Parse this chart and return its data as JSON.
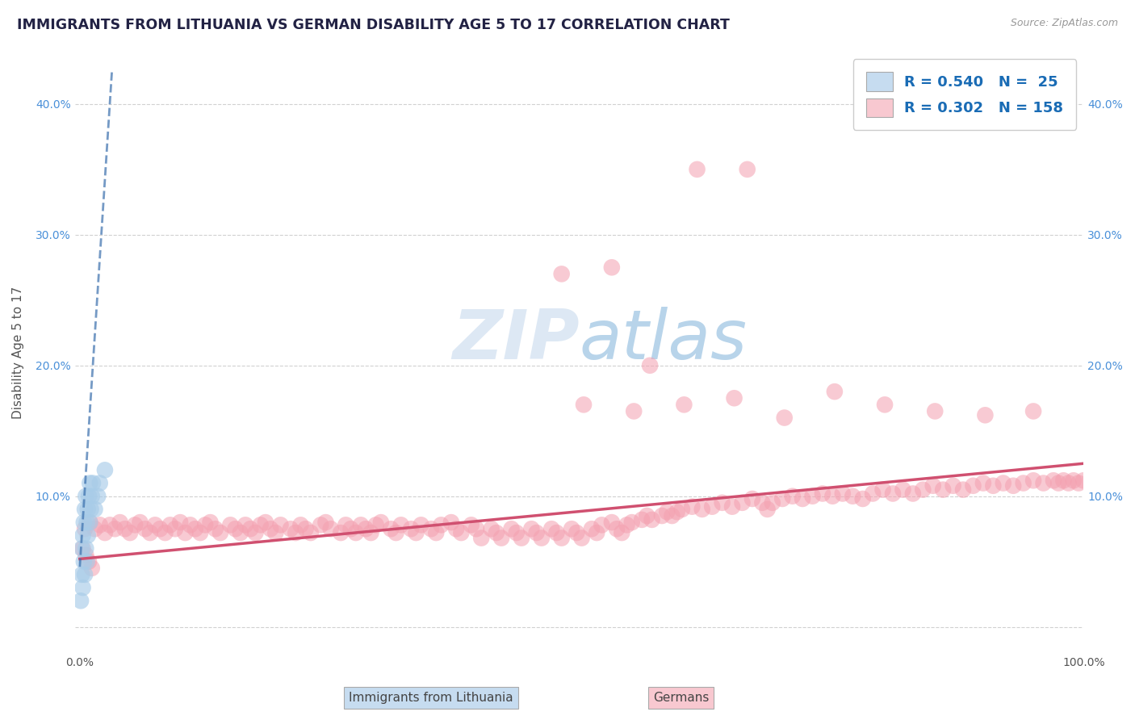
{
  "title": "IMMIGRANTS FROM LITHUANIA VS GERMAN DISABILITY AGE 5 TO 17 CORRELATION CHART",
  "source": "Source: ZipAtlas.com",
  "ylabel": "Disability Age 5 to 17",
  "xlim": [
    -0.005,
    1.0
  ],
  "ylim": [
    -0.02,
    0.44
  ],
  "xticks": [
    0.0,
    0.1,
    0.2,
    0.3,
    0.4,
    0.5,
    0.6,
    0.7,
    0.8,
    0.9,
    1.0
  ],
  "xtick_labels": [
    "0.0%",
    "",
    "",
    "",
    "",
    "",
    "",
    "",
    "",
    "",
    "100.0%"
  ],
  "ytick_labels_left": [
    "",
    "10.0%",
    "20.0%",
    "30.0%",
    "40.0%"
  ],
  "ytick_labels_right": [
    "",
    "10.0%",
    "20.0%",
    "30.0%",
    "40.0%"
  ],
  "yticks": [
    0.0,
    0.1,
    0.2,
    0.3,
    0.4
  ],
  "blue_R": 0.54,
  "blue_N": 25,
  "pink_R": 0.302,
  "pink_N": 158,
  "blue_color": "#a8cce8",
  "blue_line_color": "#3a6fad",
  "pink_color": "#f4a0b0",
  "pink_line_color": "#d05070",
  "legend_blue_face": "#c6dcf0",
  "legend_pink_face": "#f8c8d0",
  "watermark_color": "#dde8f4",
  "blue_scatter_x": [
    0.001,
    0.002,
    0.002,
    0.003,
    0.003,
    0.004,
    0.004,
    0.005,
    0.005,
    0.006,
    0.006,
    0.007,
    0.007,
    0.008,
    0.008,
    0.009,
    0.01,
    0.01,
    0.011,
    0.012,
    0.013,
    0.015,
    0.018,
    0.02,
    0.025
  ],
  "blue_scatter_y": [
    0.02,
    0.04,
    0.06,
    0.03,
    0.07,
    0.05,
    0.08,
    0.04,
    0.09,
    0.06,
    0.1,
    0.08,
    0.05,
    0.09,
    0.07,
    0.1,
    0.08,
    0.11,
    0.09,
    0.1,
    0.11,
    0.09,
    0.1,
    0.11,
    0.12
  ],
  "pink_scatter_x": [
    0.005,
    0.01,
    0.015,
    0.02,
    0.025,
    0.03,
    0.035,
    0.04,
    0.045,
    0.05,
    0.055,
    0.06,
    0.065,
    0.07,
    0.075,
    0.08,
    0.085,
    0.09,
    0.095,
    0.1,
    0.105,
    0.11,
    0.115,
    0.12,
    0.125,
    0.13,
    0.135,
    0.14,
    0.15,
    0.155,
    0.16,
    0.165,
    0.17,
    0.175,
    0.18,
    0.185,
    0.19,
    0.195,
    0.2,
    0.21,
    0.215,
    0.22,
    0.225,
    0.23,
    0.24,
    0.245,
    0.25,
    0.26,
    0.265,
    0.27,
    0.275,
    0.28,
    0.285,
    0.29,
    0.295,
    0.3,
    0.31,
    0.315,
    0.32,
    0.33,
    0.335,
    0.34,
    0.35,
    0.355,
    0.36,
    0.37,
    0.375,
    0.38,
    0.39,
    0.395,
    0.4,
    0.41,
    0.415,
    0.42,
    0.43,
    0.435,
    0.44,
    0.45,
    0.455,
    0.46,
    0.47,
    0.475,
    0.48,
    0.49,
    0.495,
    0.5,
    0.51,
    0.515,
    0.52,
    0.53,
    0.535,
    0.54,
    0.545,
    0.55,
    0.56,
    0.565,
    0.57,
    0.58,
    0.585,
    0.59,
    0.595,
    0.6,
    0.61,
    0.62,
    0.63,
    0.64,
    0.65,
    0.66,
    0.67,
    0.68,
    0.685,
    0.69,
    0.7,
    0.71,
    0.72,
    0.73,
    0.74,
    0.75,
    0.76,
    0.77,
    0.78,
    0.79,
    0.8,
    0.81,
    0.82,
    0.83,
    0.84,
    0.85,
    0.86,
    0.87,
    0.88,
    0.89,
    0.9,
    0.91,
    0.92,
    0.93,
    0.94,
    0.95,
    0.96,
    0.97,
    0.975,
    0.98,
    0.985,
    0.99,
    0.995,
    1.0,
    0.003,
    0.006,
    0.009,
    0.012,
    0.502,
    0.552,
    0.602,
    0.652,
    0.702,
    0.752,
    0.802,
    0.852,
    0.902,
    0.95,
    0.48,
    0.53,
    0.568,
    0.615,
    0.665
  ],
  "pink_scatter_y": [
    0.075,
    0.08,
    0.075,
    0.078,
    0.072,
    0.078,
    0.075,
    0.08,
    0.075,
    0.072,
    0.078,
    0.08,
    0.075,
    0.072,
    0.078,
    0.075,
    0.072,
    0.078,
    0.075,
    0.08,
    0.072,
    0.078,
    0.075,
    0.072,
    0.078,
    0.08,
    0.075,
    0.072,
    0.078,
    0.075,
    0.072,
    0.078,
    0.075,
    0.072,
    0.078,
    0.08,
    0.075,
    0.072,
    0.078,
    0.075,
    0.072,
    0.078,
    0.075,
    0.072,
    0.078,
    0.08,
    0.075,
    0.072,
    0.078,
    0.075,
    0.072,
    0.078,
    0.075,
    0.072,
    0.078,
    0.08,
    0.075,
    0.072,
    0.078,
    0.075,
    0.072,
    0.078,
    0.075,
    0.072,
    0.078,
    0.08,
    0.075,
    0.072,
    0.078,
    0.075,
    0.068,
    0.075,
    0.072,
    0.068,
    0.075,
    0.072,
    0.068,
    0.075,
    0.072,
    0.068,
    0.075,
    0.072,
    0.068,
    0.075,
    0.072,
    0.068,
    0.075,
    0.072,
    0.078,
    0.08,
    0.075,
    0.072,
    0.078,
    0.08,
    0.082,
    0.085,
    0.082,
    0.085,
    0.088,
    0.085,
    0.088,
    0.09,
    0.092,
    0.09,
    0.092,
    0.095,
    0.092,
    0.095,
    0.098,
    0.095,
    0.09,
    0.095,
    0.098,
    0.1,
    0.098,
    0.1,
    0.102,
    0.1,
    0.102,
    0.1,
    0.098,
    0.102,
    0.105,
    0.102,
    0.105,
    0.102,
    0.105,
    0.108,
    0.105,
    0.108,
    0.105,
    0.108,
    0.11,
    0.108,
    0.11,
    0.108,
    0.11,
    0.112,
    0.11,
    0.112,
    0.11,
    0.112,
    0.11,
    0.112,
    0.11,
    0.112,
    0.06,
    0.055,
    0.05,
    0.045,
    0.17,
    0.165,
    0.17,
    0.175,
    0.16,
    0.18,
    0.17,
    0.165,
    0.162,
    0.165,
    0.27,
    0.275,
    0.2,
    0.35,
    0.35
  ],
  "pink_line_x0": 0.0,
  "pink_line_x1": 1.0,
  "pink_line_y0": 0.052,
  "pink_line_y1": 0.125,
  "blue_line_x0": 0.0,
  "blue_line_x1": 0.032,
  "blue_line_y0": 0.046,
  "blue_line_y1": 0.425
}
